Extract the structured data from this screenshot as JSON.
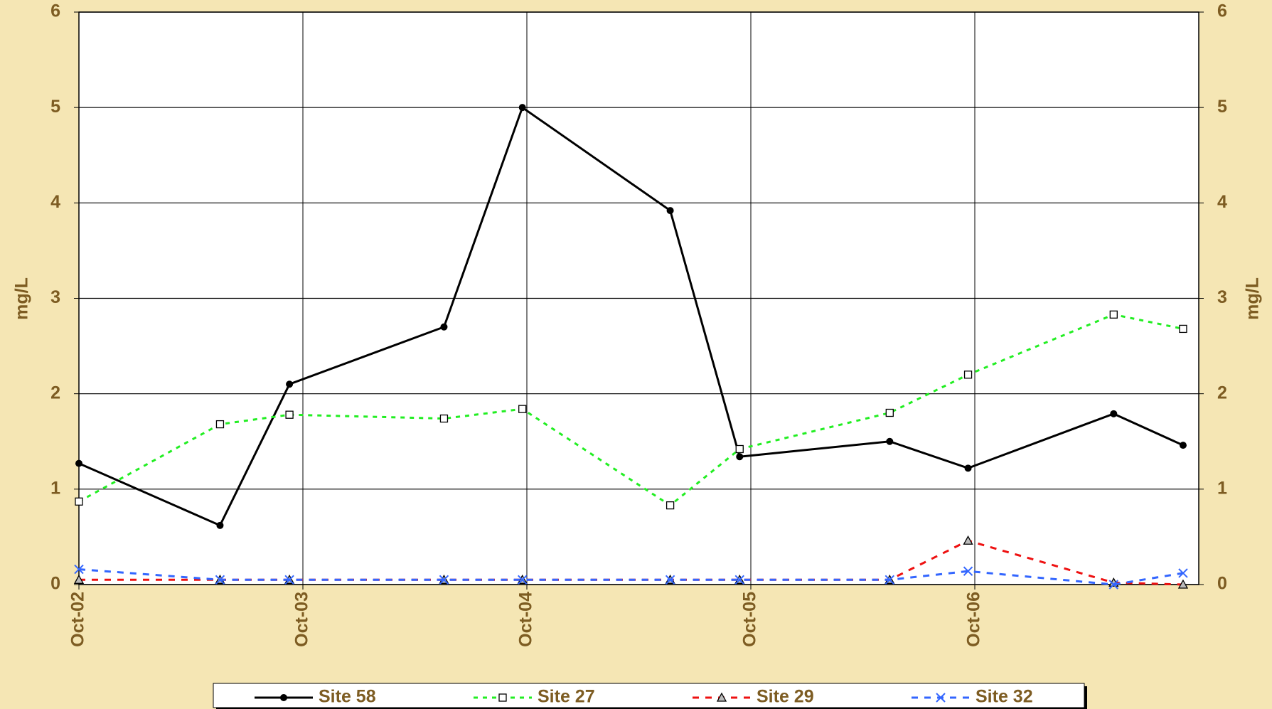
{
  "chart_data": {
    "type": "line",
    "x": [
      2002.75,
      2003.38,
      2003.69,
      2004.38,
      2004.73,
      2005.39,
      2005.7,
      2006.37,
      2006.72,
      2007.37,
      2007.68
    ],
    "xlim": [
      2002.75,
      2007.75
    ],
    "xticks": [
      {
        "value": 2002.75,
        "label": "Oct-02"
      },
      {
        "value": 2003.75,
        "label": "Oct-03"
      },
      {
        "value": 2004.75,
        "label": "Oct-04"
      },
      {
        "value": 2005.75,
        "label": "Oct-05"
      },
      {
        "value": 2006.75,
        "label": "Oct-06"
      }
    ],
    "ylim": [
      0,
      6
    ],
    "yticks": [
      0,
      1,
      2,
      3,
      4,
      5,
      6
    ],
    "y2lim": [
      0,
      6
    ],
    "y2ticks": [
      0,
      1,
      2,
      3,
      4,
      5,
      6
    ],
    "ylabel": "mg/L",
    "y2label": "mg/L",
    "grid": true,
    "legend": "bottom",
    "series": [
      {
        "name": "Site 58",
        "color": "#000000",
        "marker": "circle",
        "dash": "solid",
        "values": [
          1.27,
          0.62,
          2.1,
          2.7,
          5.0,
          3.92,
          1.34,
          1.5,
          1.22,
          1.79,
          1.46
        ]
      },
      {
        "name": "Site 27",
        "color": "#22ee22",
        "marker": "square",
        "dash": "dotted",
        "values": [
          0.87,
          1.68,
          1.78,
          1.74,
          1.84,
          0.83,
          1.42,
          1.8,
          2.2,
          2.83,
          2.68
        ]
      },
      {
        "name": "Site 29",
        "color": "#ee1111",
        "marker": "triangle",
        "dash": "dashed",
        "values": [
          0.05,
          0.05,
          0.05,
          0.05,
          0.05,
          0.05,
          0.05,
          0.05,
          0.46,
          0.02,
          0.0
        ]
      },
      {
        "name": "Site 32",
        "color": "#3366ff",
        "marker": "x",
        "dash": "dashed",
        "values": [
          0.16,
          0.05,
          0.05,
          0.05,
          0.05,
          0.05,
          0.05,
          0.05,
          0.14,
          0.0,
          0.12
        ]
      }
    ]
  }
}
